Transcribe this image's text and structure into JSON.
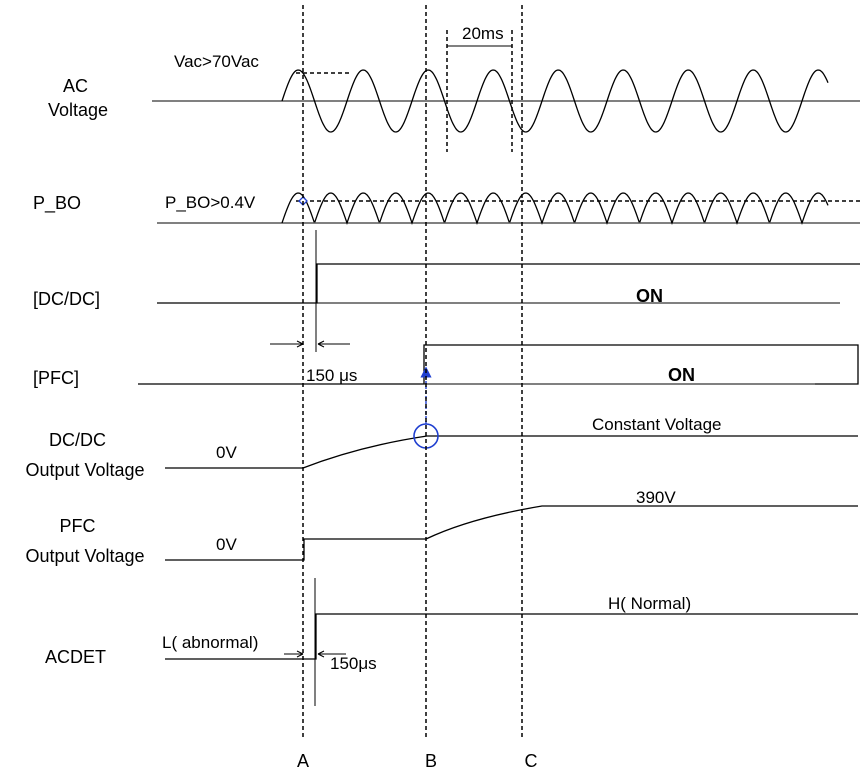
{
  "rows": {
    "ac": [
      "AC",
      "Voltage"
    ],
    "pbo": [
      "P_BO"
    ],
    "dcdc": [
      "[DC/DC]"
    ],
    "pfc": [
      "[PFC]"
    ],
    "dcdc_out": [
      "DC/DC",
      "Output Voltage"
    ],
    "pfc_out": [
      "PFC",
      "Output Voltage"
    ],
    "acdet": [
      "ACDET"
    ]
  },
  "annotations": {
    "vac_threshold": "Vac>70Vac",
    "period": "20ms",
    "pbo_threshold": "P_BO>0.4V",
    "dcdc_state": "ON",
    "pfc_delay": "150 μs",
    "pfc_state": "ON",
    "dcdc_out_initial": "0V",
    "dcdc_out_final": "Constant Voltage",
    "pfc_out_initial": "0V",
    "pfc_out_final": "390V",
    "acdet_initial": "L( abnormal)",
    "acdet_final": "H( Normal)",
    "acdet_delay": "150μs"
  },
  "markers": [
    "A",
    "B",
    "C"
  ],
  "colors": {
    "line": "#000000",
    "highlight": "#1f3fd0"
  }
}
